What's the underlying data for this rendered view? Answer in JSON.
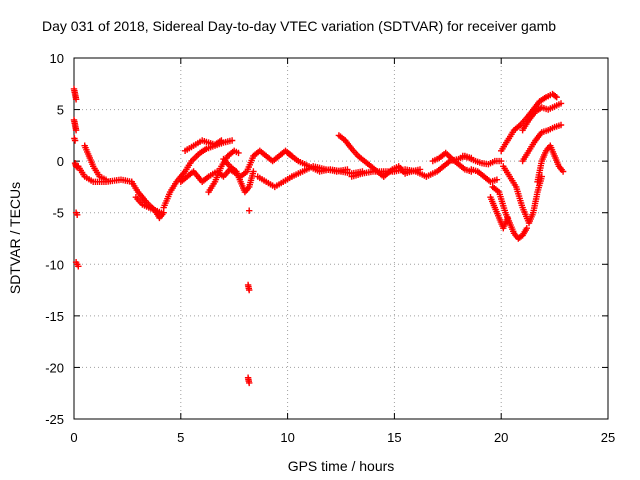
{
  "chart_data": {
    "type": "scatter",
    "title": "Day 031 of 2018, Sidereal Day-to-day VTEC variation (SDTVAR) for receiver gamb",
    "xlabel": "GPS time / hours",
    "ylabel": "SDTVAR / TECUs",
    "xlim": [
      0,
      25
    ],
    "ylim": [
      -25,
      10
    ],
    "xticks": [
      0,
      5,
      10,
      15,
      20,
      25
    ],
    "yticks": [
      -25,
      -20,
      -15,
      -10,
      -5,
      0,
      5,
      10
    ],
    "xtick_labels": [
      "0",
      "5",
      "10",
      "15",
      "20",
      "25"
    ],
    "ytick_labels": [
      "-25",
      "-20",
      "-15",
      "-10",
      "-5",
      "0",
      "5",
      "10"
    ],
    "grid": true,
    "marker": "+",
    "marker_color": "#ff0000",
    "series": [
      {
        "name": "SDTVAR",
        "tracks": [
          {
            "points": [
              [
                0.0,
                7.0
              ],
              [
                0.05,
                6.5
              ],
              [
                0.1,
                6.0
              ]
            ]
          },
          {
            "points": [
              [
                0.0,
                4.0
              ],
              [
                0.05,
                3.5
              ],
              [
                0.1,
                3.0
              ]
            ]
          },
          {
            "points": [
              [
                0.02,
                2.2
              ],
              [
                0.05,
                2.0
              ]
            ]
          },
          {
            "points": [
              [
                0.05,
                -0.2
              ],
              [
                0.1,
                -0.5
              ],
              [
                0.15,
                -0.6
              ]
            ]
          },
          {
            "points": [
              [
                0.1,
                -5.0
              ],
              [
                0.15,
                -5.2
              ]
            ]
          },
          {
            "points": [
              [
                0.1,
                -9.8
              ],
              [
                0.15,
                -10.0
              ],
              [
                0.2,
                -10.2
              ]
            ]
          },
          {
            "points": [
              [
                0.2,
                -0.5
              ],
              [
                0.5,
                -1.5
              ],
              [
                0.9,
                -2.0
              ],
              [
                1.5,
                -2.0
              ],
              [
                2.2,
                -1.8
              ],
              [
                2.7,
                -2.0
              ]
            ]
          },
          {
            "points": [
              [
                0.5,
                1.5
              ],
              [
                0.7,
                0.5
              ],
              [
                0.9,
                -0.5
              ],
              [
                1.2,
                -1.5
              ],
              [
                1.5,
                -1.8
              ]
            ]
          },
          {
            "points": [
              [
                2.7,
                -2.0
              ],
              [
                3.0,
                -3.0
              ],
              [
                3.4,
                -4.0
              ],
              [
                3.8,
                -4.8
              ],
              [
                4.0,
                -5.5
              ],
              [
                4.2,
                -5.0
              ]
            ]
          },
          {
            "points": [
              [
                2.9,
                -3.5
              ],
              [
                3.2,
                -4.2
              ],
              [
                3.6,
                -4.6
              ],
              [
                4.1,
                -5.0
              ]
            ]
          },
          {
            "points": [
              [
                4.2,
                -4.5
              ],
              [
                4.5,
                -3.0
              ],
              [
                4.8,
                -2.0
              ],
              [
                5.2,
                -1.0
              ],
              [
                5.5,
                0.0
              ],
              [
                5.9,
                0.8
              ],
              [
                6.2,
                1.2
              ],
              [
                6.6,
                1.5
              ],
              [
                7.0,
                1.8
              ],
              [
                7.4,
                2.0
              ]
            ]
          },
          {
            "points": [
              [
                5.0,
                -2.0
              ],
              [
                5.3,
                -1.5
              ],
              [
                5.6,
                -1.0
              ],
              [
                6.0,
                -2.0
              ],
              [
                6.3,
                -1.5
              ],
              [
                6.7,
                -1.0
              ],
              [
                7.0,
                -1.5
              ],
              [
                7.3,
                -0.8
              ],
              [
                7.6,
                -1.2
              ]
            ]
          },
          {
            "points": [
              [
                5.2,
                1.0
              ],
              [
                5.6,
                1.5
              ],
              [
                6.0,
                2.0
              ],
              [
                6.3,
                1.8
              ],
              [
                6.6,
                1.6
              ],
              [
                6.9,
                2.0
              ]
            ]
          },
          {
            "points": [
              [
                6.3,
                -3.0
              ],
              [
                6.6,
                -2.0
              ],
              [
                6.9,
                -0.5
              ],
              [
                7.2,
                0.5
              ],
              [
                7.5,
                1.0
              ],
              [
                7.7,
                0.8
              ]
            ]
          },
          {
            "points": [
              [
                7.0,
                0.2
              ],
              [
                7.3,
                -0.5
              ],
              [
                7.6,
                -1.0
              ],
              [
                7.8,
                -2.0
              ],
              [
                8.0,
                -3.0
              ],
              [
                8.2,
                -2.5
              ],
              [
                8.4,
                -1.0
              ]
            ]
          },
          {
            "points": [
              [
                7.8,
                -1.5
              ],
              [
                8.1,
                -1.0
              ],
              [
                8.4,
                0.5
              ],
              [
                8.7,
                1.0
              ],
              [
                9.0,
                0.5
              ],
              [
                9.3,
                0.0
              ],
              [
                9.6,
                0.5
              ],
              [
                9.9,
                1.0
              ],
              [
                10.2,
                0.5
              ]
            ]
          },
          {
            "points": [
              [
                8.2,
                -4.8
              ]
            ]
          },
          {
            "points": [
              [
                8.15,
                -12.0
              ],
              [
                8.2,
                -12.5
              ]
            ]
          },
          {
            "points": [
              [
                8.15,
                -21.0
              ],
              [
                8.2,
                -21.5
              ]
            ]
          },
          {
            "points": [
              [
                8.6,
                -1.5
              ],
              [
                9.0,
                -2.0
              ],
              [
                9.4,
                -2.5
              ],
              [
                9.8,
                -2.0
              ],
              [
                10.2,
                -1.5
              ]
            ]
          },
          {
            "points": [
              [
                10.0,
                0.8
              ],
              [
                10.5,
                0.0
              ],
              [
                11.0,
                -0.5
              ],
              [
                11.5,
                -1.0
              ],
              [
                12.0,
                -0.8
              ],
              [
                12.5,
                -1.0
              ],
              [
                13.0,
                -1.2
              ],
              [
                13.5,
                -1.0
              ]
            ]
          },
          {
            "points": [
              [
                10.2,
                -1.5
              ],
              [
                10.7,
                -1.0
              ],
              [
                11.2,
                -0.5
              ],
              [
                11.8,
                -0.8
              ],
              [
                12.3,
                -1.0
              ],
              [
                12.8,
                -0.8
              ]
            ]
          },
          {
            "points": [
              [
                12.4,
                2.5
              ],
              [
                12.7,
                2.0
              ],
              [
                13.0,
                1.2
              ],
              [
                13.3,
                0.5
              ],
              [
                13.6,
                0.0
              ],
              [
                13.9,
                -0.5
              ],
              [
                14.2,
                -1.0
              ],
              [
                14.5,
                -1.5
              ]
            ]
          },
          {
            "points": [
              [
                13.0,
                -1.5
              ],
              [
                13.5,
                -1.2
              ],
              [
                14.0,
                -1.0
              ],
              [
                14.5,
                -1.0
              ],
              [
                15.0,
                -1.0
              ],
              [
                15.5,
                -0.8
              ],
              [
                16.0,
                -1.0
              ],
              [
                16.5,
                -1.5
              ]
            ]
          },
          {
            "points": [
              [
                14.5,
                -1.5
              ],
              [
                14.9,
                -0.8
              ],
              [
                15.2,
                -0.5
              ],
              [
                15.5,
                -1.2
              ],
              [
                15.8,
                -1.0
              ],
              [
                16.2,
                -0.8
              ]
            ]
          },
          {
            "points": [
              [
                16.5,
                -1.5
              ],
              [
                17.0,
                -1.0
              ],
              [
                17.3,
                -0.5
              ],
              [
                17.6,
                0.0
              ],
              [
                18.0,
                0.2
              ],
              [
                18.3,
                0.5
              ],
              [
                18.6,
                0.3
              ]
            ]
          },
          {
            "points": [
              [
                16.8,
                0.0
              ],
              [
                17.1,
                0.3
              ],
              [
                17.4,
                0.8
              ],
              [
                17.7,
                0.2
              ],
              [
                18.0,
                -0.3
              ],
              [
                18.3,
                -0.8
              ],
              [
                18.6,
                -1.0
              ]
            ]
          },
          {
            "points": [
              [
                18.6,
                -0.8
              ],
              [
                18.9,
                -1.0
              ],
              [
                19.2,
                -1.5
              ],
              [
                19.5,
                -2.0
              ],
              [
                19.8,
                -1.8
              ]
            ]
          },
          {
            "points": [
              [
                18.2,
                0.5
              ],
              [
                18.5,
                0.3
              ],
              [
                18.8,
                0.0
              ],
              [
                19.1,
                -0.2
              ],
              [
                19.4,
                -0.3
              ],
              [
                19.7,
                0.0
              ],
              [
                20.0,
                0.0
              ]
            ]
          },
          {
            "points": [
              [
                19.5,
                -3.5
              ],
              [
                19.7,
                -4.5
              ],
              [
                19.9,
                -5.5
              ],
              [
                20.1,
                -6.5
              ],
              [
                20.3,
                -5.5
              ]
            ]
          },
          {
            "points": [
              [
                19.6,
                -2.5
              ],
              [
                19.9,
                -3.0
              ],
              [
                20.2,
                -5.0
              ],
              [
                20.4,
                -6.0
              ],
              [
                20.6,
                -7.0
              ],
              [
                20.8,
                -7.5
              ],
              [
                21.0,
                -7.2
              ],
              [
                21.2,
                -6.5
              ]
            ]
          },
          {
            "points": [
              [
                20.1,
                -0.5
              ],
              [
                20.4,
                -1.5
              ],
              [
                20.7,
                -2.5
              ],
              [
                21.0,
                -4.5
              ],
              [
                21.3,
                -6.0
              ],
              [
                21.5,
                -5.0
              ],
              [
                21.7,
                -3.0
              ],
              [
                21.9,
                -1.5
              ]
            ]
          },
          {
            "points": [
              [
                20.0,
                1.0
              ],
              [
                20.3,
                2.0
              ],
              [
                20.6,
                3.0
              ],
              [
                20.9,
                3.5
              ],
              [
                21.2,
                4.2
              ],
              [
                21.5,
                5.0
              ],
              [
                21.8,
                5.8
              ],
              [
                22.1,
                6.2
              ],
              [
                22.4,
                6.5
              ],
              [
                22.6,
                6.2
              ]
            ]
          },
          {
            "points": [
              [
                21.0,
                3.0
              ],
              [
                21.3,
                4.0
              ],
              [
                21.6,
                4.8
              ],
              [
                21.9,
                5.2
              ],
              [
                22.2,
                5.0
              ],
              [
                22.5,
                5.3
              ],
              [
                22.8,
                5.6
              ]
            ]
          },
          {
            "points": [
              [
                21.0,
                0.0
              ],
              [
                21.3,
                1.0
              ],
              [
                21.6,
                2.0
              ],
              [
                21.9,
                2.8
              ],
              [
                22.2,
                3.0
              ],
              [
                22.5,
                3.3
              ],
              [
                22.8,
                3.5
              ]
            ]
          },
          {
            "points": [
              [
                21.7,
                -2.0
              ],
              [
                21.9,
                0.0
              ],
              [
                22.1,
                1.0
              ],
              [
                22.3,
                1.5
              ],
              [
                22.5,
                0.5
              ],
              [
                22.7,
                -0.5
              ],
              [
                22.9,
                -1.0
              ]
            ]
          }
        ]
      }
    ]
  }
}
